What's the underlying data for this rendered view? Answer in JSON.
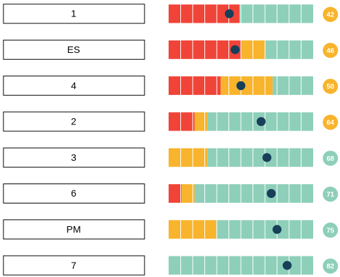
{
  "chart_data": {
    "type": "stacked_bar",
    "categories": [
      "1",
      "ES",
      "4",
      "2",
      "3",
      "6",
      "PM",
      "7"
    ],
    "series": [
      {
        "color": "#f04438",
        "values": [
          49,
          50,
          36,
          18,
          0,
          9,
          0,
          0
        ]
      },
      {
        "color": "#f8b42c",
        "values": [
          0,
          17,
          36,
          9,
          27,
          9,
          33,
          0
        ]
      },
      {
        "color": "#8ecfb9",
        "values": [
          51,
          33,
          28,
          73,
          73,
          82,
          67,
          100
        ]
      }
    ],
    "scores": [
      42,
      46,
      50,
      64,
      68,
      71,
      75,
      82
    ],
    "score_colors": [
      "#f8b42c",
      "#f8b42c",
      "#f8b42c",
      "#f8b42c",
      "#8ecfb9",
      "#8ecfb9",
      "#8ecfb9",
      "#8ecfb9"
    ],
    "dot_color": "#173f5a",
    "xlim": [
      0,
      100
    ]
  }
}
